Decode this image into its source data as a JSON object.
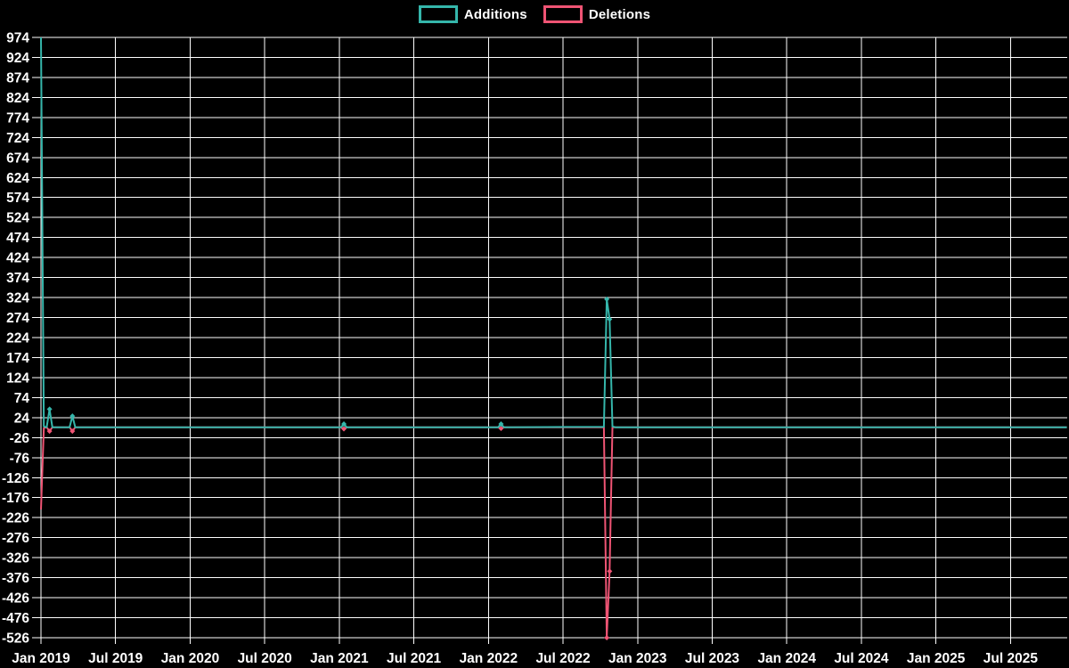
{
  "app": {
    "background_color": "#000000",
    "text_color": "#ffffff",
    "grid_color": "#ffffff"
  },
  "legend": {
    "position": "top-center",
    "items": [
      {
        "label": "Additions",
        "color": "#35b6ab"
      },
      {
        "label": "Deletions",
        "color": "#ef5474"
      }
    ]
  },
  "chart_data": {
    "type": "line",
    "title": "",
    "xlabel": "",
    "ylabel": "",
    "grid": true,
    "x_axis": {
      "tick_labels": [
        "Jan 2019",
        "Jul 2019",
        "Jan 2020",
        "Jul 2020",
        "Jan 2021",
        "Jul 2021",
        "Jan 2022",
        "Jul 2022",
        "Jan 2023",
        "Jul 2023",
        "Jan 2024",
        "Jul 2024",
        "Jan 2025",
        "Jul 2025"
      ],
      "tick_interval": "6 months"
    },
    "y_axis": {
      "min": -526,
      "max": 974,
      "step": 50,
      "tick_values": [
        974,
        924,
        874,
        824,
        774,
        724,
        674,
        624,
        574,
        524,
        474,
        424,
        374,
        324,
        274,
        224,
        174,
        124,
        74,
        24,
        -26,
        -76,
        -126,
        -176,
        -226,
        -276,
        -326,
        -376,
        -426,
        -476,
        -526
      ]
    },
    "baseline_value": 0,
    "series": [
      {
        "name": "Additions",
        "color": "#35b6ab",
        "points": [
          {
            "week": 0,
            "date": "2019-01-06",
            "value": 974
          },
          {
            "week": 1,
            "date": "2019-01-13",
            "value": 2
          },
          {
            "week": 2,
            "date": "2019-01-20",
            "value": 0
          },
          {
            "week": 3,
            "date": "2019-01-27",
            "value": 45,
            "marker": true
          },
          {
            "week": 4,
            "date": "2019-02-03",
            "value": 0
          },
          {
            "week": 10,
            "date": "2019-03-17",
            "value": 0
          },
          {
            "week": 11,
            "date": "2019-03-24",
            "value": 28,
            "marker": true
          },
          {
            "week": 12,
            "date": "2019-03-31",
            "value": 0
          },
          {
            "week": 105,
            "date": "2021-01-10",
            "value": 0
          },
          {
            "week": 106,
            "date": "2021-01-17",
            "value": 8,
            "marker": true
          },
          {
            "week": 107,
            "date": "2021-01-24",
            "value": 0
          },
          {
            "week": 160,
            "date": "2022-01-30",
            "value": 0
          },
          {
            "week": 161,
            "date": "2022-02-06",
            "value": 8,
            "marker": true
          },
          {
            "week": 162,
            "date": "2022-02-13",
            "value": 0
          },
          {
            "week": 197,
            "date": "2022-10-16",
            "value": 1
          },
          {
            "week": 198,
            "date": "2022-10-23",
            "value": 320,
            "marker": true
          },
          {
            "week": 199,
            "date": "2022-10-30",
            "value": 270,
            "marker": true
          },
          {
            "week": 200,
            "date": "2022-11-06",
            "value": 2
          },
          {
            "week": 201,
            "date": "2022-11-13",
            "value": 0
          },
          {
            "week": 359,
            "date": "2025-11-23",
            "value": 0
          }
        ]
      },
      {
        "name": "Deletions",
        "color": "#ef5474",
        "points": [
          {
            "week": 0,
            "date": "2019-01-06",
            "value": -205
          },
          {
            "week": 1,
            "date": "2019-01-13",
            "value": -2
          },
          {
            "week": 2,
            "date": "2019-01-20",
            "value": 0
          },
          {
            "week": 3,
            "date": "2019-01-27",
            "value": -10,
            "marker": true
          },
          {
            "week": 4,
            "date": "2019-02-03",
            "value": 0
          },
          {
            "week": 10,
            "date": "2019-03-17",
            "value": 0
          },
          {
            "week": 11,
            "date": "2019-03-24",
            "value": -10,
            "marker": true
          },
          {
            "week": 12,
            "date": "2019-03-31",
            "value": 0
          },
          {
            "week": 105,
            "date": "2021-01-10",
            "value": 0
          },
          {
            "week": 106,
            "date": "2021-01-17",
            "value": -4,
            "marker": true
          },
          {
            "week": 107,
            "date": "2021-01-24",
            "value": 0
          },
          {
            "week": 160,
            "date": "2022-01-30",
            "value": 0
          },
          {
            "week": 161,
            "date": "2022-02-06",
            "value": -3,
            "marker": true
          },
          {
            "week": 162,
            "date": "2022-02-13",
            "value": 0
          },
          {
            "week": 197,
            "date": "2022-10-16",
            "value": 0
          },
          {
            "week": 198,
            "date": "2022-10-23",
            "value": -526,
            "marker": true
          },
          {
            "week": 199,
            "date": "2022-10-30",
            "value": -360,
            "marker": true
          },
          {
            "week": 200,
            "date": "2022-11-06",
            "value": 0
          },
          {
            "week": 359,
            "date": "2025-11-23",
            "value": 0
          }
        ]
      }
    ]
  }
}
